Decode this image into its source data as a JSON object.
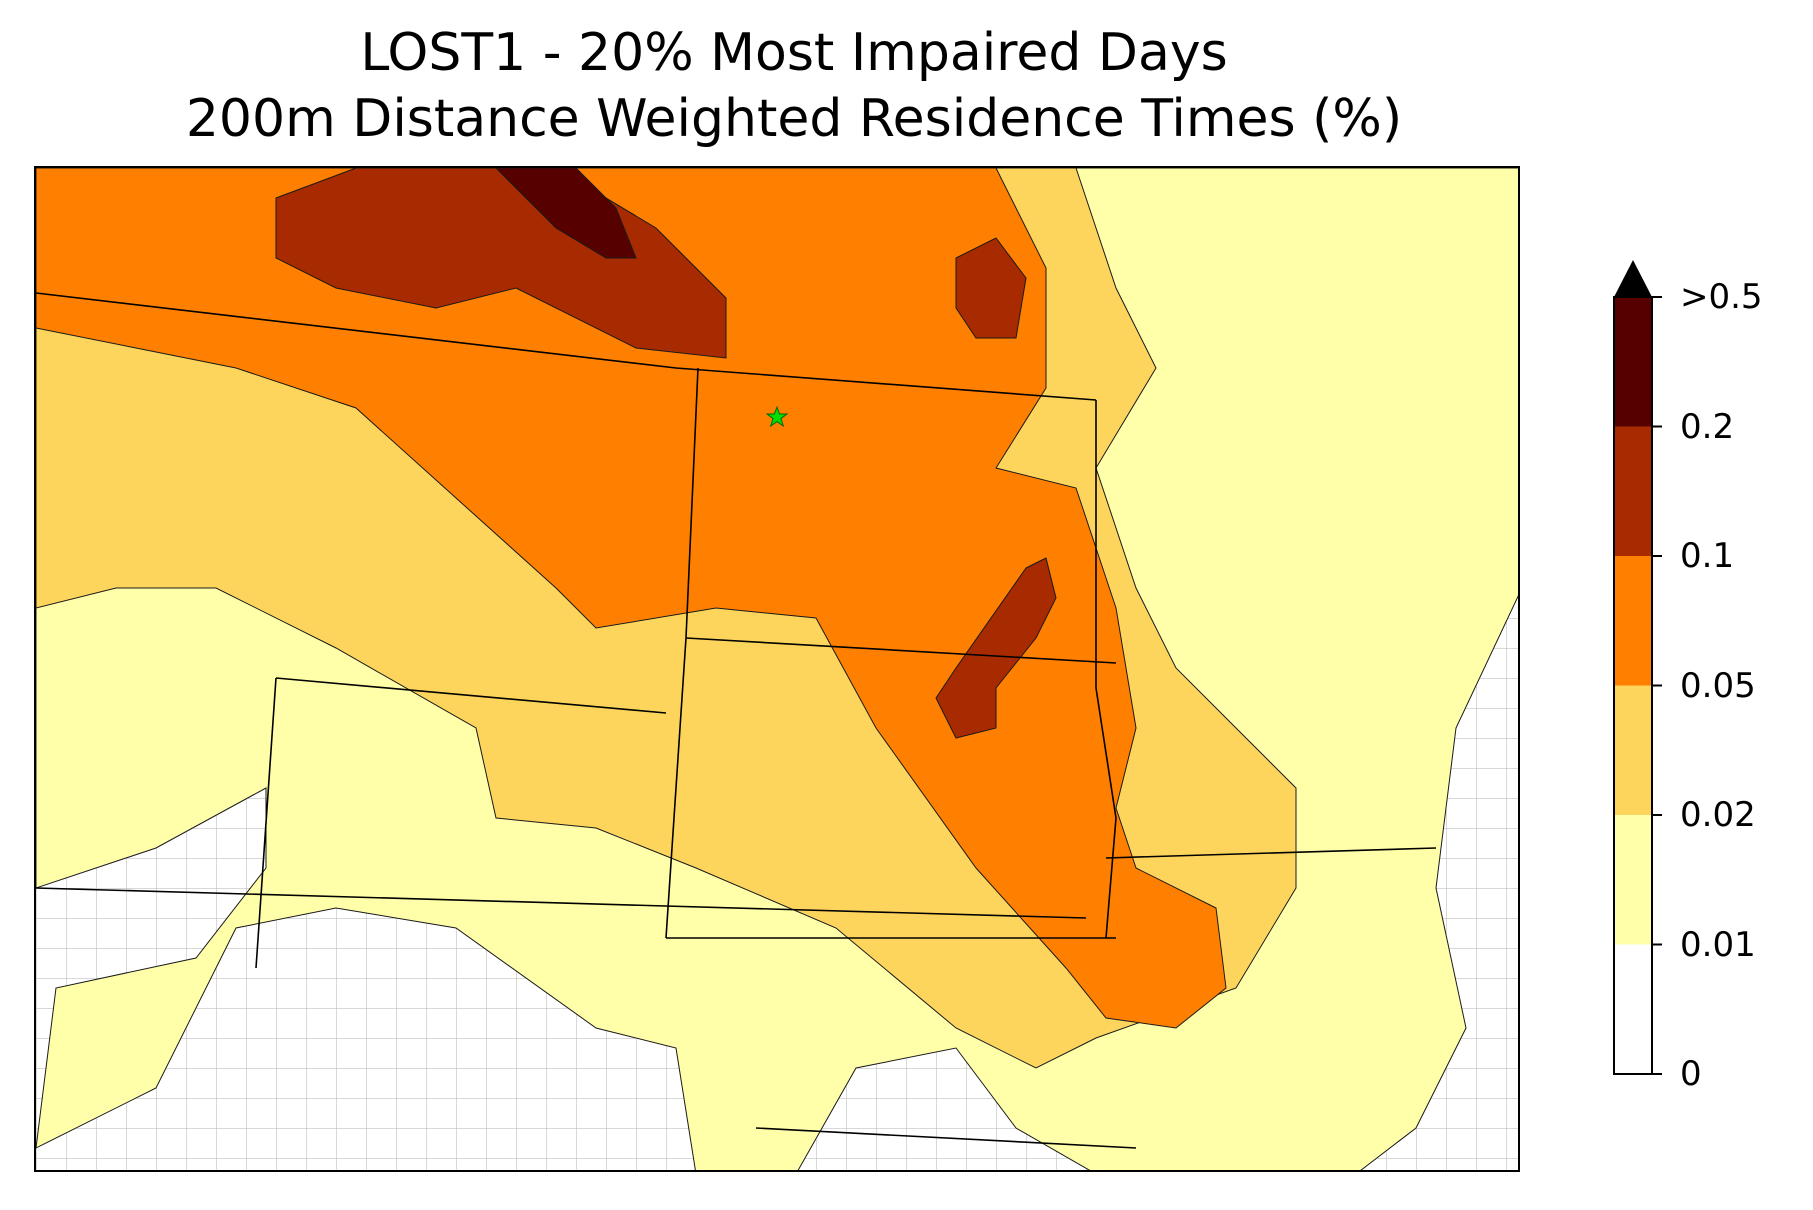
{
  "title": {
    "line1": "LOST1 - 20% Most Impaired Days",
    "line2": "200m Distance Weighted Residence Times (%)"
  },
  "legend": {
    "extend": "max",
    "ticks": [
      "0",
      "0.01",
      "0.02",
      "0.05",
      "0.1",
      "0.2",
      ">0.5"
    ],
    "bins": [
      {
        "range": "0-0.01",
        "color": "#ffffff"
      },
      {
        "range": "0.01-0.02",
        "color": "#ffffaa"
      },
      {
        "range": "0.02-0.05",
        "color": "#fed55c"
      },
      {
        "range": "0.05-0.1",
        "color": "#ff8000"
      },
      {
        "range": "0.1-0.2",
        "color": "#a82a00"
      },
      {
        "range": "0.2-0.5",
        "color": "#570000"
      },
      {
        "range": ">0.5",
        "color": "#000000"
      }
    ]
  },
  "markers": [
    {
      "name": "LOST1 site",
      "symbol": "star",
      "color": "#00dd00"
    }
  ],
  "colors": {
    "county_lines": "#a8a8a8",
    "state_lines": "#000000",
    "contour_lines": "#1a1a1a"
  }
}
